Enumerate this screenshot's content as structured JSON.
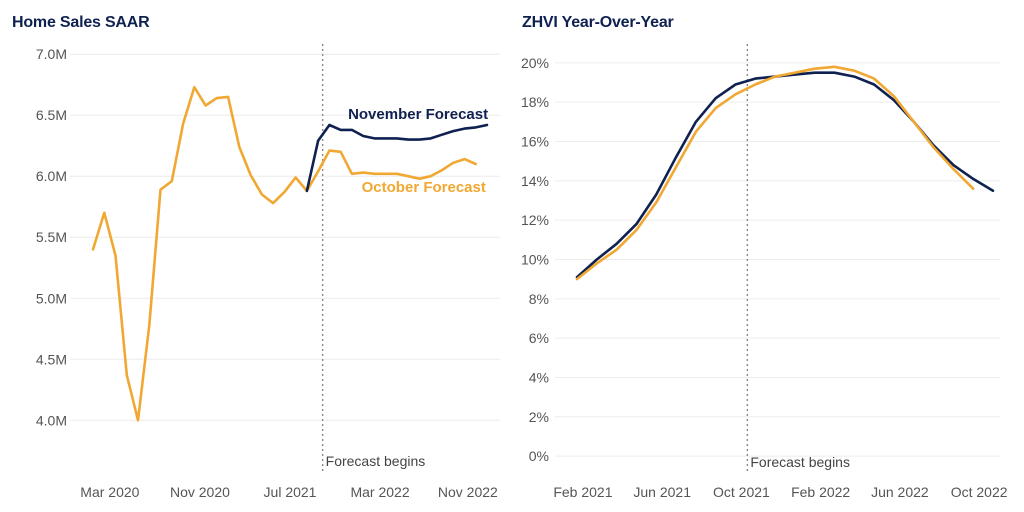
{
  "colors": {
    "november": "#0f2150",
    "october": "#f0a832"
  },
  "chart_data": [
    {
      "type": "line",
      "title": "Home Sales SAAR",
      "y_tick_labels": [
        "4.0M",
        "4.5M",
        "5.0M",
        "5.5M",
        "6.0M",
        "6.5M",
        "7.0M"
      ],
      "y_tick_values": [
        4.0,
        4.5,
        5.0,
        5.5,
        6.0,
        6.5,
        7.0
      ],
      "ylim": [
        3.65,
        7.1
      ],
      "x_index_range": [
        0,
        35
      ],
      "x_ticks": [
        {
          "label": "Mar 2020",
          "index": 1.5
        },
        {
          "label": "Nov 2020",
          "index": 9.5
        },
        {
          "label": "Jul 2021",
          "index": 17.5
        },
        {
          "label": "Mar 2022",
          "index": 25.5
        },
        {
          "label": "Nov 2022",
          "index": 33.3
        }
      ],
      "forecast_index": 20.4,
      "forecast_label": "Forecast begins",
      "series": [
        {
          "name": "October Forecast",
          "color_key": "october",
          "label_index": 34.9,
          "label_value": 5.87,
          "x": [
            0,
            1,
            2,
            3,
            4,
            5,
            6,
            7,
            8,
            9,
            10,
            11,
            12,
            13,
            14,
            15,
            16,
            17,
            18,
            19,
            20,
            21,
            22,
            23,
            24,
            25,
            26,
            27,
            28,
            29,
            30,
            31,
            32,
            33,
            34
          ],
          "values": [
            5.4,
            5.7,
            5.35,
            4.37,
            4.0,
            4.78,
            5.89,
            5.96,
            6.43,
            6.73,
            6.58,
            6.64,
            6.65,
            6.24,
            6.01,
            5.85,
            5.78,
            5.87,
            5.99,
            5.88,
            6.04,
            6.21,
            6.2,
            6.02,
            6.03,
            6.02,
            6.02,
            6.02,
            6.0,
            5.98,
            6.0,
            6.05,
            6.11,
            6.14,
            6.1
          ]
        },
        {
          "name": "November Forecast",
          "color_key": "november",
          "label_index": 35.1,
          "label_value": 6.47,
          "x": [
            19,
            20,
            21,
            22,
            23,
            24,
            25,
            26,
            27,
            28,
            29,
            30,
            31,
            32,
            33,
            34,
            35
          ],
          "values": [
            5.88,
            6.29,
            6.42,
            6.38,
            6.38,
            6.33,
            6.31,
            6.31,
            6.31,
            6.3,
            6.3,
            6.31,
            6.34,
            6.37,
            6.39,
            6.4,
            6.42
          ]
        }
      ]
    },
    {
      "type": "line",
      "title": "ZHVI Year-Over-Year",
      "y_tick_labels": [
        "0%",
        "2%",
        "4%",
        "6%",
        "8%",
        "10%",
        "12%",
        "14%",
        "16%",
        "18%",
        "20%"
      ],
      "y_tick_values": [
        0,
        2,
        4,
        6,
        8,
        10,
        12,
        14,
        16,
        18,
        20
      ],
      "ylim": [
        -0.4,
        20.5
      ],
      "x_index_range": [
        0,
        21
      ],
      "x_ticks": [
        {
          "label": "Feb 2021",
          "index": 0.3
        },
        {
          "label": "Jun 2021",
          "index": 4.3
        },
        {
          "label": "Oct 2021",
          "index": 8.3
        },
        {
          "label": "Feb 2022",
          "index": 12.3
        },
        {
          "label": "Jun 2022",
          "index": 16.3
        },
        {
          "label": "Oct 2022",
          "index": 20.3
        }
      ],
      "forecast_index": 8.6,
      "forecast_label": "Forecast begins",
      "series": [
        {
          "name": "November Forecast",
          "color_key": "november",
          "x": [
            0,
            1,
            2,
            3,
            4,
            5,
            6,
            7,
            8,
            9,
            10,
            11,
            12,
            13,
            14,
            15,
            16,
            17,
            18,
            19,
            20,
            21
          ],
          "values": [
            9.1,
            10.0,
            10.8,
            11.8,
            13.3,
            15.2,
            17.0,
            18.2,
            18.9,
            19.2,
            19.3,
            19.4,
            19.5,
            19.5,
            19.3,
            18.9,
            18.1,
            17.0,
            15.8,
            14.8,
            14.1,
            13.5
          ]
        },
        {
          "name": "October Forecast",
          "color_key": "october",
          "x": [
            0,
            1,
            2,
            3,
            4,
            5,
            6,
            7,
            8,
            9,
            10,
            11,
            12,
            13,
            14,
            15,
            16,
            17,
            18,
            19,
            20
          ],
          "values": [
            9.0,
            9.8,
            10.5,
            11.5,
            12.9,
            14.7,
            16.5,
            17.7,
            18.4,
            18.9,
            19.3,
            19.5,
            19.7,
            19.8,
            19.6,
            19.2,
            18.3,
            17.0,
            15.7,
            14.6,
            13.6
          ]
        }
      ]
    }
  ]
}
